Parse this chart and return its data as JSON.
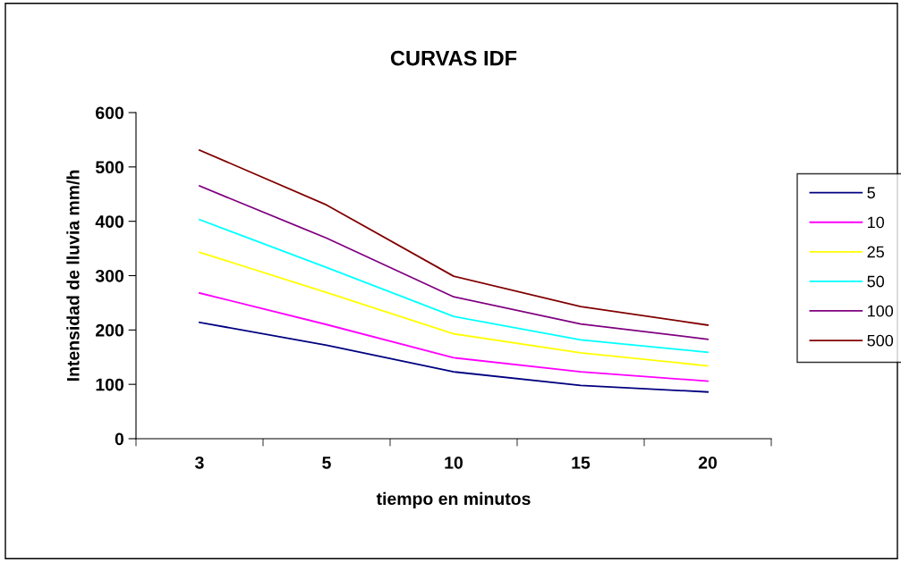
{
  "chart_data": {
    "type": "line",
    "title": "CURVAS IDF",
    "xlabel": "tiempo en minutos",
    "ylabel": "Intensidad de lluvia mm/h",
    "categories": [
      "3",
      "5",
      "10",
      "15",
      "20"
    ],
    "series": [
      {
        "name": "5",
        "color": "#000080",
        "values": [
          214,
          172,
          123,
          98,
          86
        ]
      },
      {
        "name": "10",
        "color": "#ff00ff",
        "values": [
          268,
          210,
          149,
          123,
          106
        ]
      },
      {
        "name": "25",
        "color": "#ffff00",
        "values": [
          343,
          269,
          193,
          158,
          134
        ]
      },
      {
        "name": "50",
        "color": "#00ffff",
        "values": [
          403,
          315,
          225,
          182,
          159
        ]
      },
      {
        "name": "100",
        "color": "#800080",
        "values": [
          465,
          369,
          261,
          211,
          183
        ]
      },
      {
        "name": "500",
        "color": "#800000",
        "values": [
          531,
          430,
          299,
          243,
          209
        ]
      }
    ],
    "ylim": [
      0,
      600
    ],
    "yticks": [
      0,
      100,
      200,
      300,
      400,
      500,
      600
    ],
    "grid": false,
    "legend": "right",
    "marker": "none",
    "line_style": "solid"
  }
}
